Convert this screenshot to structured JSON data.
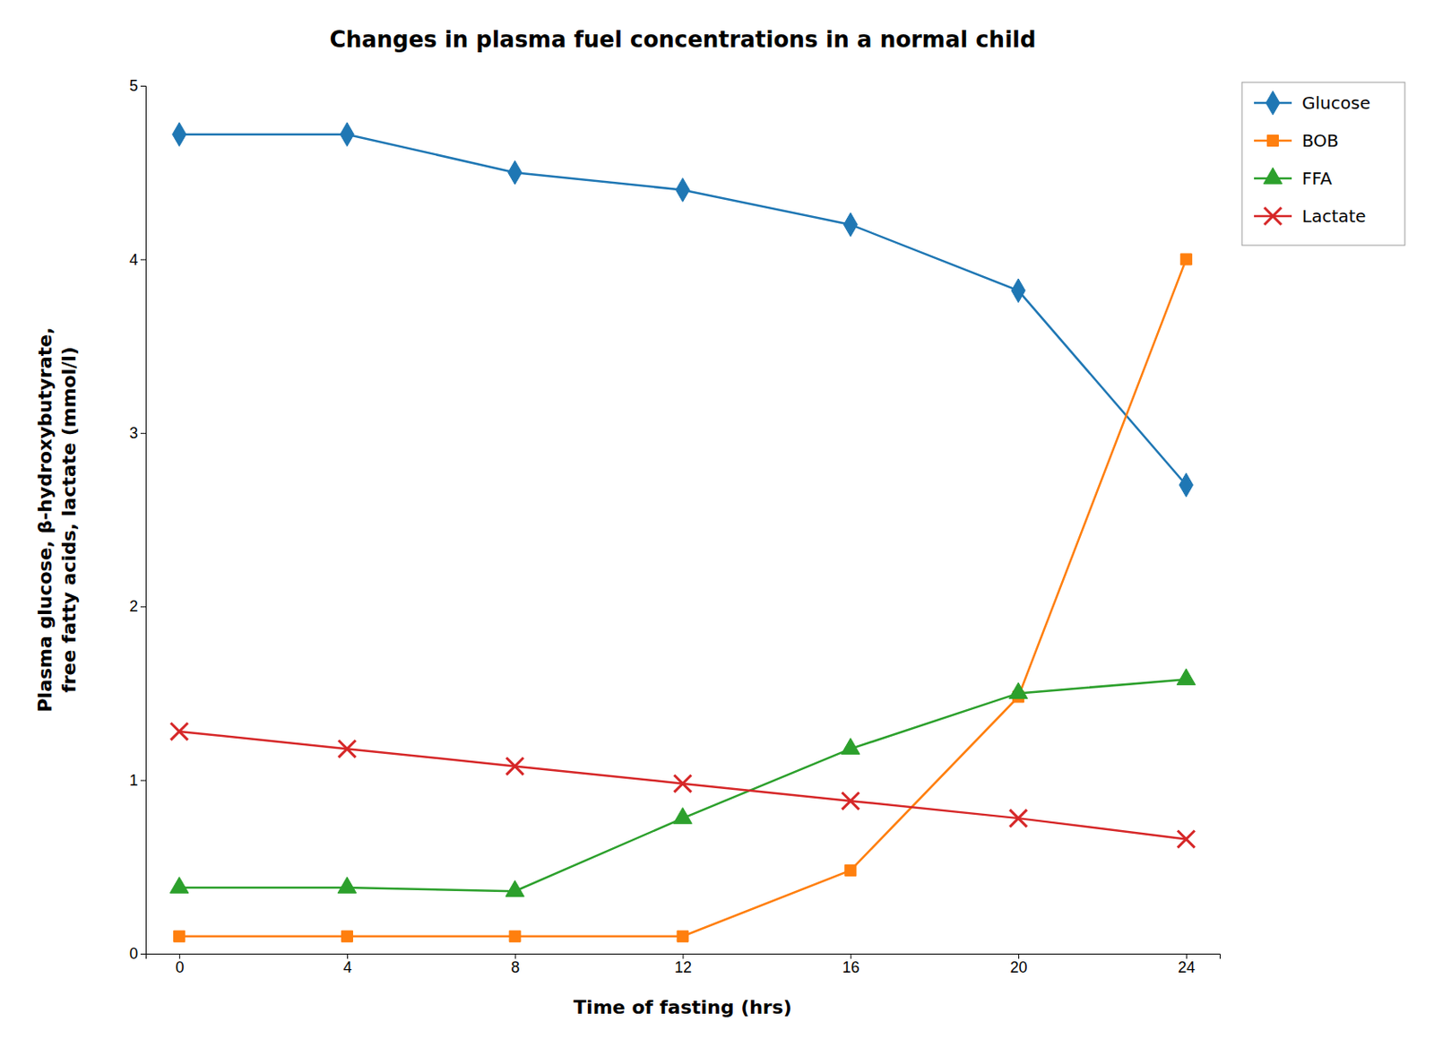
{
  "chart_data": {
    "type": "line",
    "title": "Changes in plasma fuel concentrations in a normal child",
    "xlabel": "Time of fasting (hrs)",
    "ylabel": "Plasma glucose, β-hydroxybutyrate,\nfree fatty acids, lactate (mmol/l)",
    "x": [
      0,
      4,
      8,
      12,
      16,
      20,
      24
    ],
    "xlim": [
      -0.8,
      24.8
    ],
    "xticks": [
      0,
      4,
      8,
      12,
      16,
      20,
      24
    ],
    "ylim": [
      0,
      5
    ],
    "yticks": [
      0,
      1,
      2,
      3,
      4,
      5
    ],
    "grid": false,
    "legend": "right",
    "series": [
      {
        "name": "Glucose",
        "marker": "diamond",
        "values": [
          4.72,
          4.72,
          4.5,
          4.4,
          4.2,
          3.82,
          2.7
        ]
      },
      {
        "name": "BOB",
        "marker": "square",
        "values": [
          0.1,
          0.1,
          0.1,
          0.1,
          0.48,
          1.48,
          4.0
        ]
      },
      {
        "name": "FFA",
        "marker": "triangle",
        "values": [
          0.38,
          0.38,
          0.36,
          0.78,
          1.18,
          1.5,
          1.58
        ]
      },
      {
        "name": "Lactate",
        "marker": "x",
        "values": [
          1.28,
          1.18,
          1.08,
          0.98,
          0.88,
          0.78,
          0.66
        ]
      }
    ]
  }
}
